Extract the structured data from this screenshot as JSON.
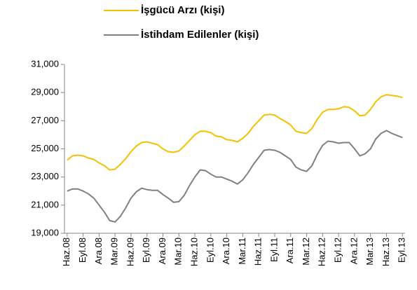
{
  "chart_data": {
    "type": "line",
    "categories": [
      "Haz.08",
      null,
      null,
      "Eyl.08",
      null,
      null,
      "Ara.08",
      null,
      null,
      "Mar.09",
      null,
      null,
      "Haz.09",
      null,
      null,
      "Eyl.09",
      null,
      null,
      "Ara.09",
      null,
      null,
      "Mar.10",
      null,
      null,
      "Haz.10",
      null,
      null,
      "Eyl.10",
      null,
      null,
      "Ara.10",
      null,
      null,
      "Mar.11",
      null,
      null,
      "Haz.11",
      null,
      null,
      "Eyl.11",
      null,
      null,
      "Ara.11",
      null,
      null,
      "Mar.12",
      null,
      null,
      "Haz.12",
      null,
      null,
      "Eyl.12",
      null,
      null,
      "Ara.12",
      null,
      null,
      "Mar.13",
      null,
      null,
      "Haz.13",
      null,
      null,
      "Eyl.13"
    ],
    "series": [
      {
        "name": "İşgücü Arzı (kişi)",
        "color": "#f5c000",
        "values": [
          24200,
          24500,
          24550,
          24500,
          24350,
          24250,
          24000,
          23800,
          23500,
          23550,
          23900,
          24300,
          24800,
          25200,
          25450,
          25500,
          25400,
          25300,
          25000,
          24800,
          24750,
          24850,
          25200,
          25600,
          26000,
          26250,
          26250,
          26150,
          25900,
          25850,
          25650,
          25600,
          25500,
          25750,
          26100,
          26600,
          27000,
          27400,
          27450,
          27400,
          27150,
          26950,
          26700,
          26250,
          26150,
          26100,
          26450,
          27100,
          27600,
          27800,
          27800,
          27850,
          28000,
          27950,
          27700,
          27350,
          27400,
          27800,
          28350,
          28700,
          28850,
          28800,
          28750,
          28650
        ]
      },
      {
        "name": "İstihdam Edilenler (kişi)",
        "color": "#808080",
        "values": [
          22000,
          22150,
          22150,
          22000,
          21800,
          21500,
          21000,
          20500,
          19900,
          19800,
          20200,
          20800,
          21500,
          21950,
          22200,
          22100,
          22050,
          22050,
          21750,
          21500,
          21200,
          21250,
          21700,
          22400,
          23000,
          23500,
          23450,
          23200,
          23000,
          23000,
          22850,
          22700,
          22500,
          22800,
          23300,
          23900,
          24400,
          24900,
          24950,
          24900,
          24750,
          24500,
          24250,
          23700,
          23500,
          23400,
          23800,
          24600,
          25250,
          25550,
          25500,
          25400,
          25450,
          25450,
          25000,
          24500,
          24650,
          25000,
          25700,
          26100,
          26300,
          26100,
          25950,
          25800
        ]
      }
    ],
    "ylim": [
      19000,
      31000
    ],
    "yticks": [
      {
        "value": 19000,
        "label": "19,000"
      },
      {
        "value": 21000,
        "label": "21,000"
      },
      {
        "value": 23000,
        "label": "23,000"
      },
      {
        "value": 25000,
        "label": "25,000"
      },
      {
        "value": 27000,
        "label": "27,000"
      },
      {
        "value": 29000,
        "label": "29,000"
      },
      {
        "value": 31000,
        "label": "31,000"
      }
    ]
  }
}
